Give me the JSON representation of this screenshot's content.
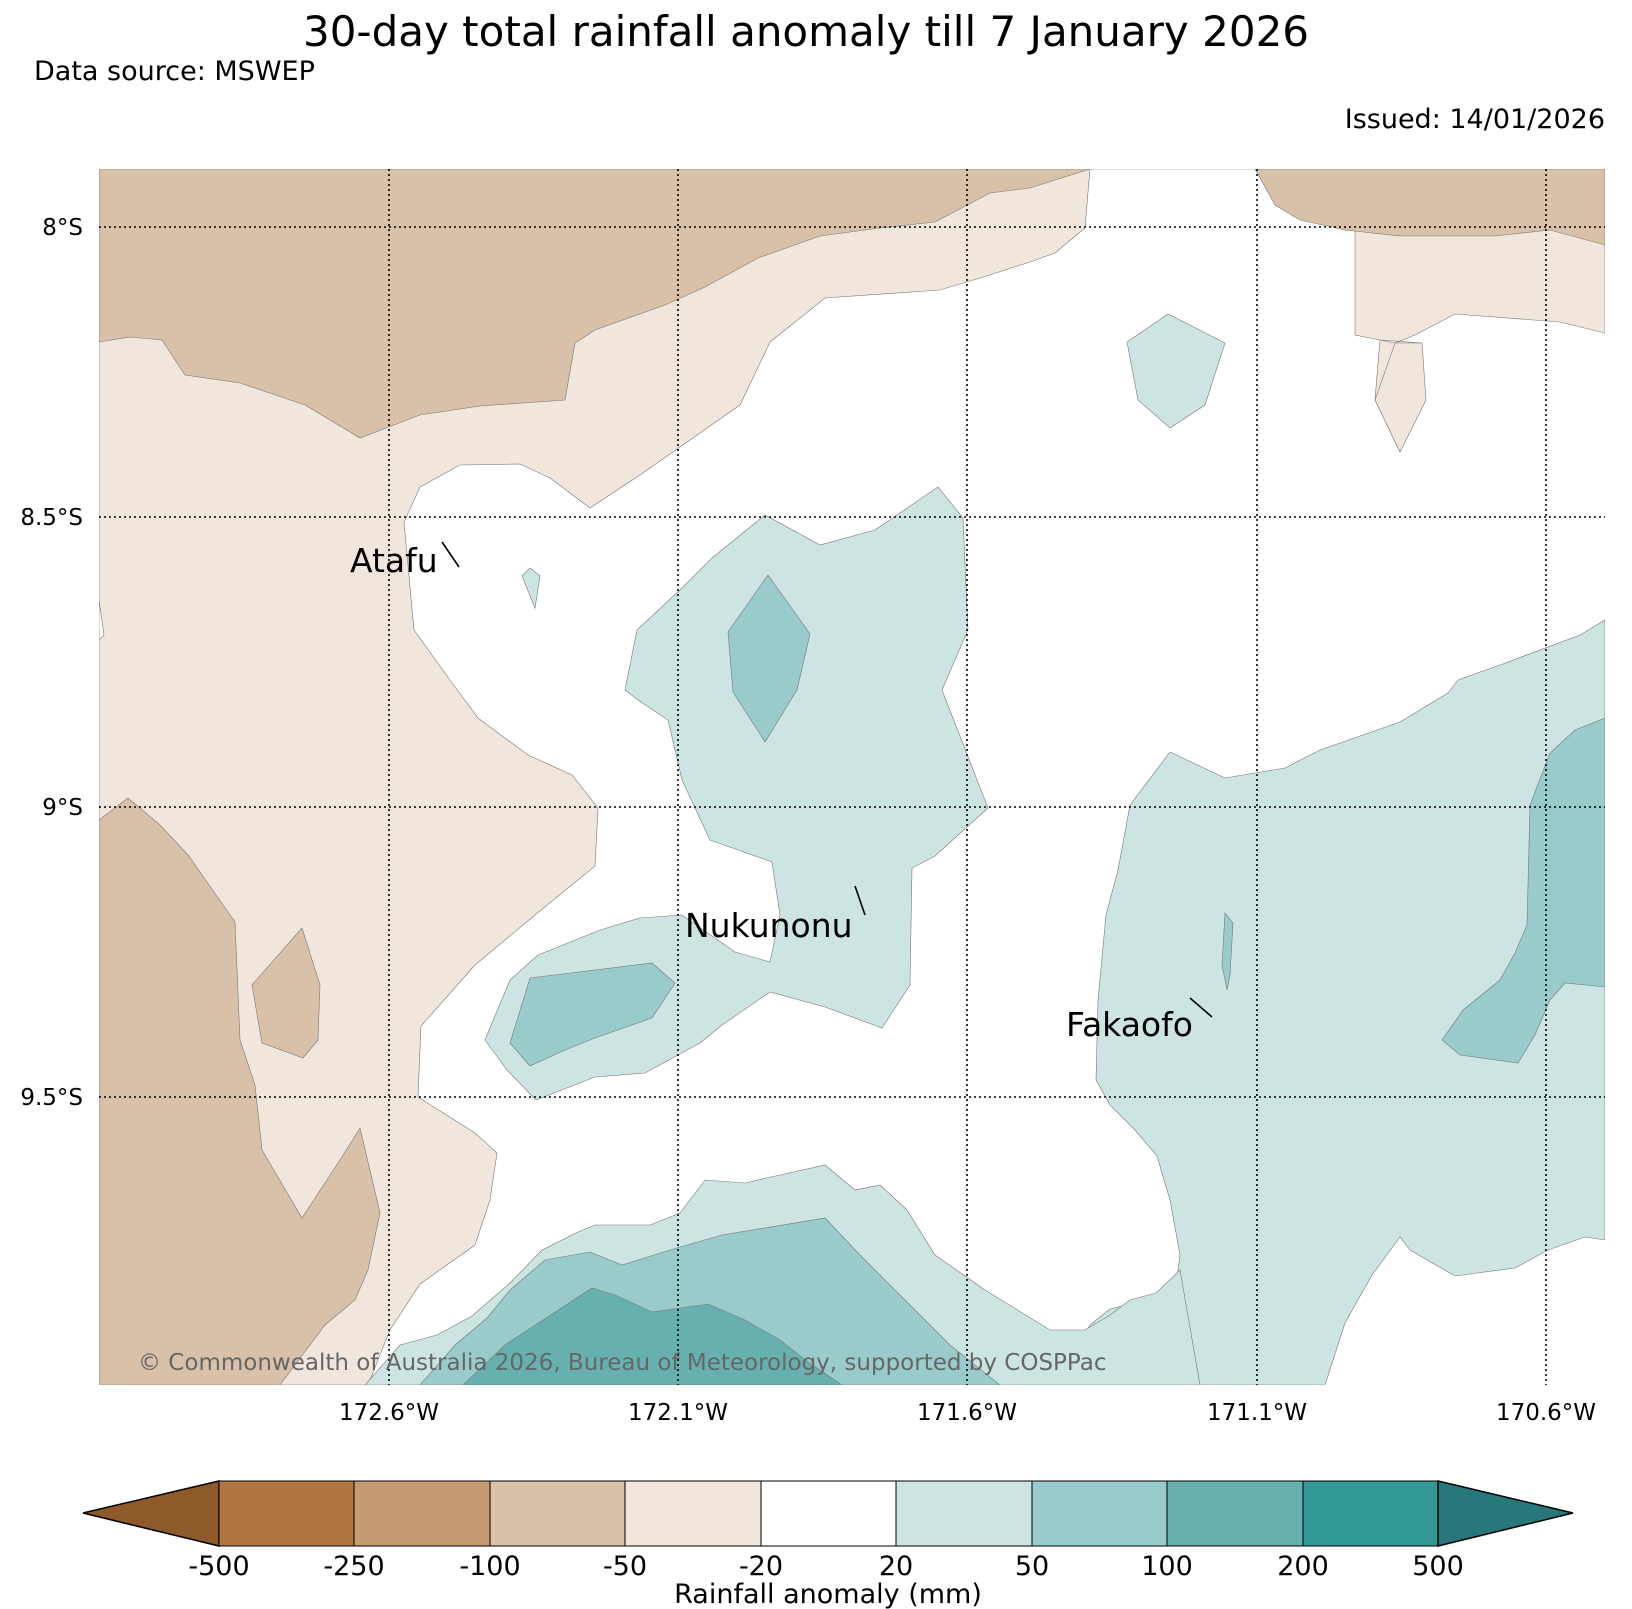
{
  "title": "30-day total rainfall anomaly till 7 January 2026",
  "data_source": "Data source: MSWEP",
  "issued": "Issued: 14/01/2026",
  "copyright": "© Commonwealth of Australia 2026, Bureau of Meteorology, supported by COSPPac",
  "map": {
    "lat_labels": [
      "8°S",
      "8.5°S",
      "9°S",
      "9.5°S"
    ],
    "lon_labels": [
      "172.6°W",
      "172.1°W",
      "171.6°W",
      "171.1°W",
      "170.6°W"
    ],
    "places": [
      {
        "name": "Atafu"
      },
      {
        "name": "Nukunonu"
      },
      {
        "name": "Fakaofo"
      }
    ]
  },
  "colorbar": {
    "label": "Rainfall anomaly (mm)",
    "ticks": [
      "-500",
      "-250",
      "-100",
      "-50",
      "-20",
      "20",
      "50",
      "100",
      "200",
      "500"
    ],
    "colors": {
      "under": "#8f5a2a",
      "bins": [
        "#af763f",
        "#c49b73",
        "#d9c1a9",
        "#f0e6dc",
        "#ffffff",
        "#cce5e3",
        "#99cbca",
        "#66b1b0",
        "#319895"
      ],
      "over": "#27787a"
    }
  }
}
